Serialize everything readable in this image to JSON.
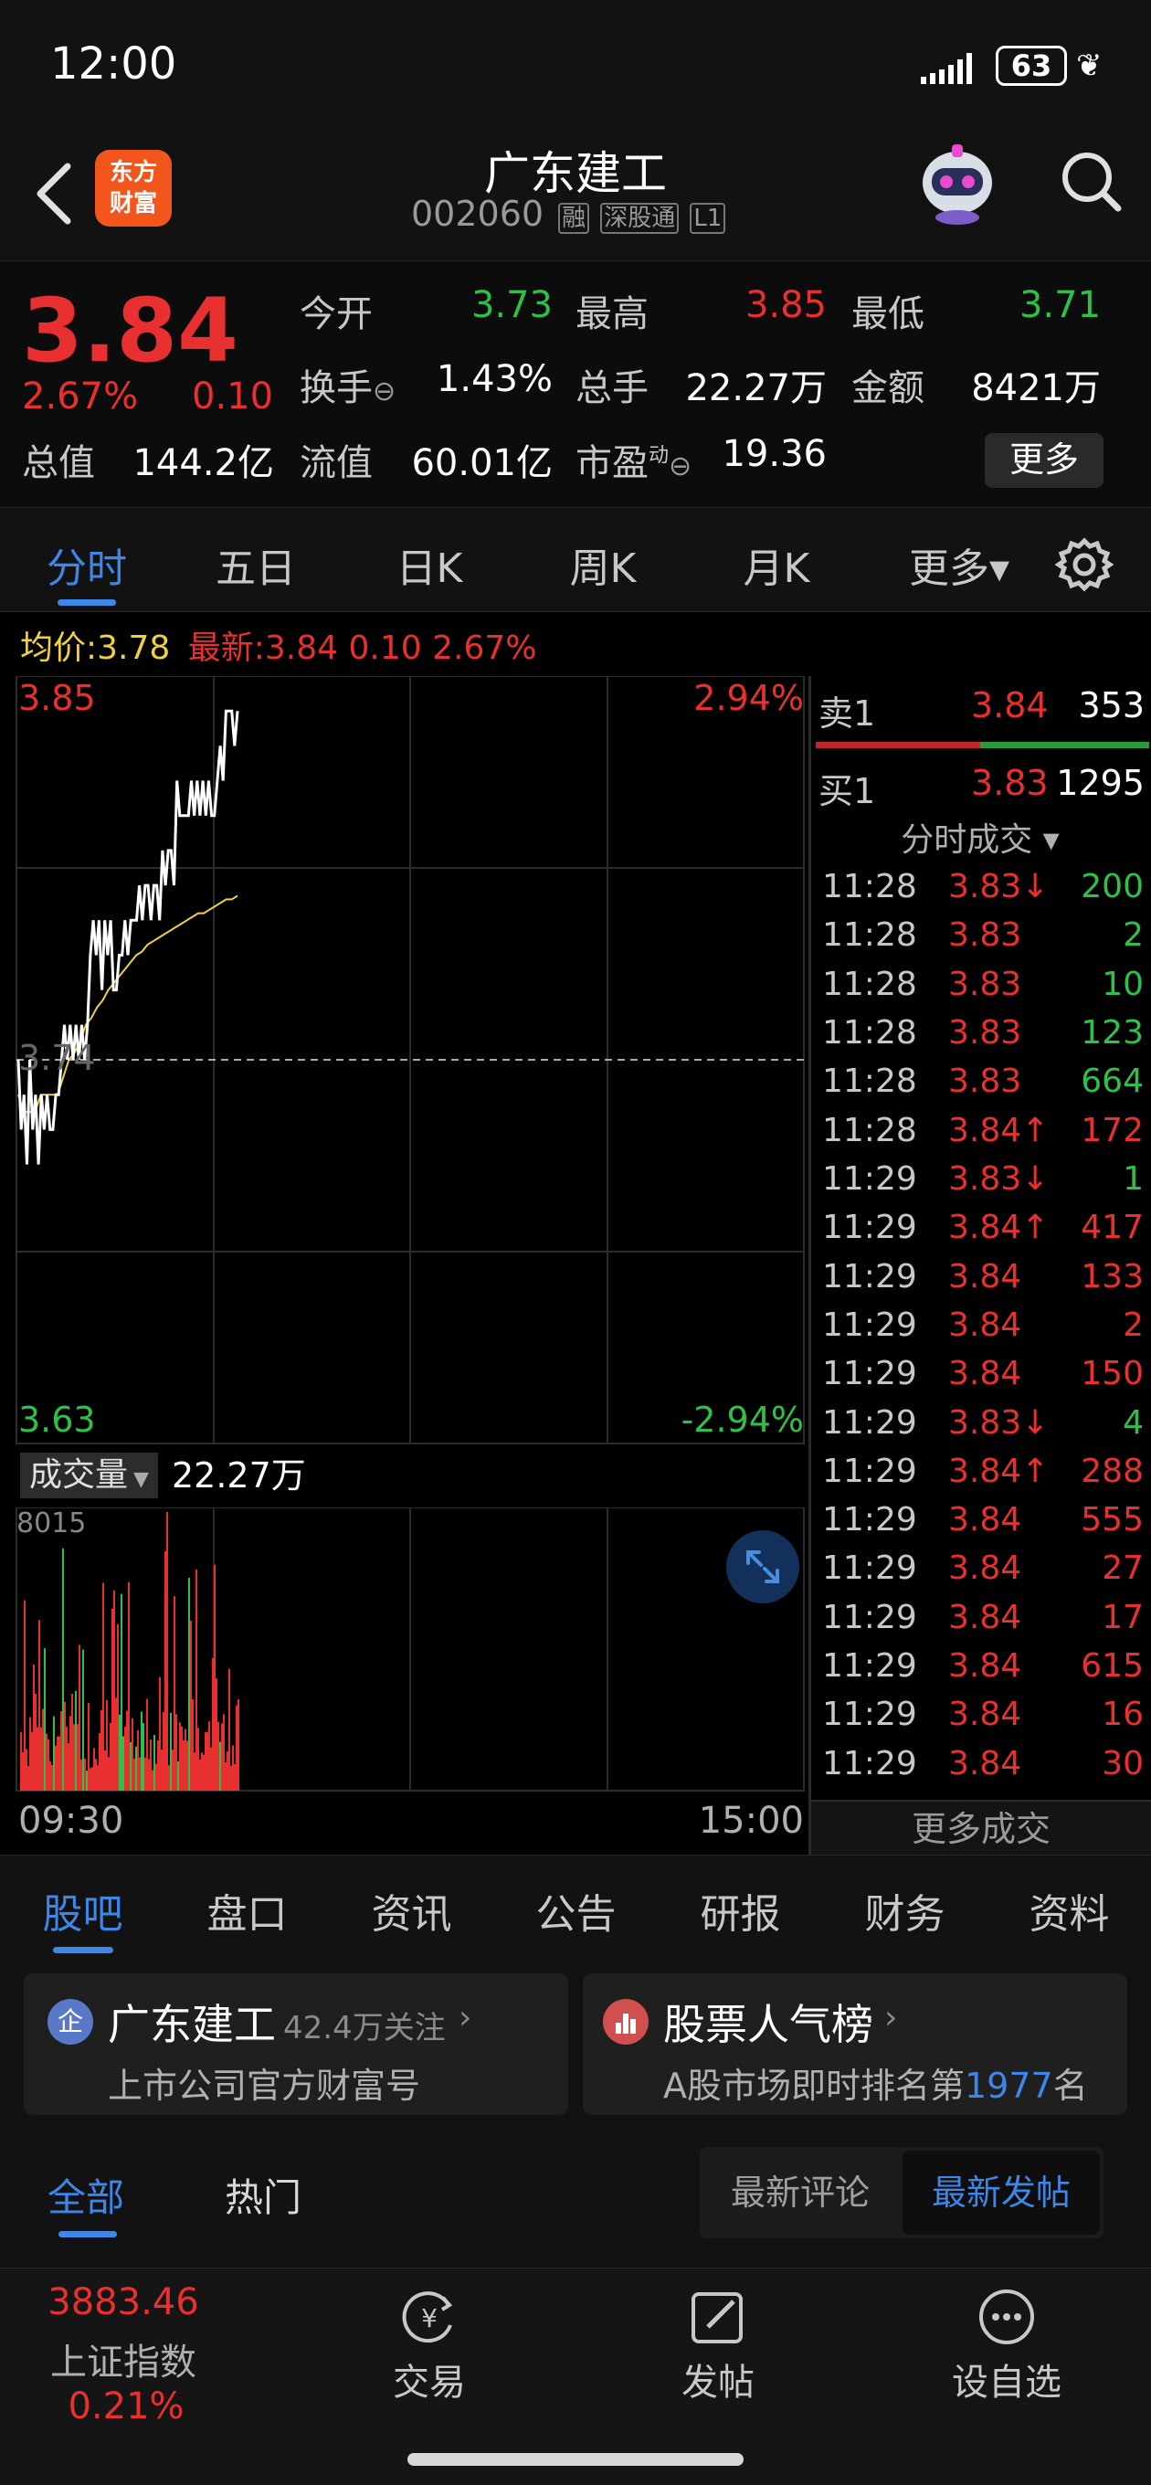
{
  "status": {
    "time": "12:00",
    "battery": "63"
  },
  "header": {
    "name": "广东建工",
    "code": "002060",
    "tags": [
      "融",
      "深股通",
      "L1"
    ],
    "logo": "东方\n财富"
  },
  "quote": {
    "price": "3.84",
    "pct": "2.67%",
    "chg": "0.10",
    "labels": {
      "open": "今开",
      "high": "最高",
      "low": "最低",
      "turnover": "换手",
      "vol": "总手",
      "amount": "金额",
      "mcap": "总值",
      "fcap": "流值",
      "pe": "市盈",
      "pe_sup": "动"
    },
    "open": "3.73",
    "high": "3.85",
    "low": "3.71",
    "turnover": "1.43%",
    "vol": "22.27万",
    "amount": "8421万",
    "mcap": "144.2亿",
    "fcap": "60.01亿",
    "pe": "19.36",
    "more": "更多"
  },
  "tabs": [
    "分时",
    "五日",
    "日K",
    "周K",
    "月K",
    "更多▾"
  ],
  "avg_line": {
    "avg_label": "均价:",
    "avg": "3.78",
    "latest_label": "最新:",
    "latest": "3.84 0.10 2.67%"
  },
  "chart_labels": {
    "ymax": "3.85",
    "ymid": "3.74",
    "ymin": "3.63",
    "pmax": "2.94%",
    "pmin": "-2.94%",
    "vol_dropdown": "成交量",
    "vol_total": "22.27万",
    "vol_max": "8015",
    "t_start": "09:30",
    "t_end": "15:00"
  },
  "chart_data": {
    "type": "line",
    "title": "",
    "ylim": [
      3.63,
      3.85
    ],
    "reference": 3.74,
    "series": [
      {
        "name": "最新",
        "values": [
          3.74,
          3.72,
          3.73,
          3.71,
          3.74,
          3.72,
          3.73,
          3.71,
          3.73,
          3.72,
          3.73,
          3.72,
          3.72,
          3.73,
          3.73,
          3.74,
          3.75,
          3.74,
          3.75,
          3.74,
          3.75,
          3.74,
          3.75,
          3.74,
          3.75,
          3.77,
          3.78,
          3.77,
          3.78,
          3.76,
          3.78,
          3.77,
          3.78,
          3.76,
          3.76,
          3.77,
          3.77,
          3.78,
          3.77,
          3.78,
          3.78,
          3.78,
          3.79,
          3.78,
          3.79,
          3.79,
          3.78,
          3.79,
          3.79,
          3.78,
          3.8,
          3.79,
          3.8,
          3.8,
          3.79,
          3.82,
          3.81,
          3.81,
          3.81,
          3.81,
          3.82,
          3.81,
          3.82,
          3.81,
          3.82,
          3.81,
          3.82,
          3.81,
          3.81,
          3.82,
          3.83,
          3.82,
          3.84,
          3.84,
          3.84,
          3.83,
          3.84
        ]
      },
      {
        "name": "均价",
        "values": [
          3.73,
          3.725,
          3.725,
          3.725,
          3.73,
          3.73,
          3.73,
          3.73,
          3.735,
          3.74,
          3.742,
          3.745,
          3.75,
          3.752,
          3.755,
          3.757,
          3.76,
          3.762,
          3.764,
          3.766,
          3.768,
          3.77,
          3.771,
          3.773,
          3.774,
          3.775,
          3.776,
          3.777,
          3.778,
          3.779,
          3.78,
          3.781,
          3.782,
          3.782,
          3.783,
          3.784,
          3.785,
          3.786,
          3.786,
          3.787
        ]
      }
    ],
    "volume": {
      "ymax": 8015
    }
  },
  "orderbook": {
    "sell1": {
      "label": "卖1",
      "price": "3.84",
      "vol": "353"
    },
    "buy1": {
      "label": "买1",
      "price": "3.83",
      "vol": "1295"
    }
  },
  "trades_title": "分时成交 ▾",
  "trades": [
    {
      "time": "11:28",
      "price": "3.83↓",
      "vol": "200",
      "pc": "red",
      "vc": "green"
    },
    {
      "time": "11:28",
      "price": "3.83",
      "vol": "2",
      "pc": "red",
      "vc": "green"
    },
    {
      "time": "11:28",
      "price": "3.83",
      "vol": "10",
      "pc": "red",
      "vc": "green"
    },
    {
      "time": "11:28",
      "price": "3.83",
      "vol": "123",
      "pc": "red",
      "vc": "green"
    },
    {
      "time": "11:28",
      "price": "3.83",
      "vol": "664",
      "pc": "red",
      "vc": "green"
    },
    {
      "time": "11:28",
      "price": "3.84↑",
      "vol": "172",
      "pc": "red",
      "vc": "red"
    },
    {
      "time": "11:29",
      "price": "3.83↓",
      "vol": "1",
      "pc": "red",
      "vc": "green"
    },
    {
      "time": "11:29",
      "price": "3.84↑",
      "vol": "417",
      "pc": "red",
      "vc": "red"
    },
    {
      "time": "11:29",
      "price": "3.84",
      "vol": "133",
      "pc": "red",
      "vc": "red"
    },
    {
      "time": "11:29",
      "price": "3.84",
      "vol": "2",
      "pc": "red",
      "vc": "red"
    },
    {
      "time": "11:29",
      "price": "3.84",
      "vol": "150",
      "pc": "red",
      "vc": "red"
    },
    {
      "time": "11:29",
      "price": "3.83↓",
      "vol": "4",
      "pc": "red",
      "vc": "green"
    },
    {
      "time": "11:29",
      "price": "3.84↑",
      "vol": "288",
      "pc": "red",
      "vc": "red"
    },
    {
      "time": "11:29",
      "price": "3.84",
      "vol": "555",
      "pc": "red",
      "vc": "red"
    },
    {
      "time": "11:29",
      "price": "3.84",
      "vol": "27",
      "pc": "red",
      "vc": "red"
    },
    {
      "time": "11:29",
      "price": "3.84",
      "vol": "17",
      "pc": "red",
      "vc": "red"
    },
    {
      "time": "11:29",
      "price": "3.84",
      "vol": "615",
      "pc": "red",
      "vc": "red"
    },
    {
      "time": "11:29",
      "price": "3.84",
      "vol": "16",
      "pc": "red",
      "vc": "red"
    },
    {
      "time": "11:29",
      "price": "3.84",
      "vol": "30",
      "pc": "red",
      "vc": "red"
    }
  ],
  "more_trades": "更多成交",
  "subtabs": [
    "股吧",
    "盘口",
    "资讯",
    "公告",
    "研报",
    "财务",
    "资料"
  ],
  "card1": {
    "badge": "企",
    "title": "广东建工",
    "followers": "42.4万关注",
    "sub": "上市公司官方财富号"
  },
  "card2": {
    "title": "股票人气榜",
    "sub_prefix": "A股市场即时排名第",
    "rank": "1977",
    "sub_suffix": "名"
  },
  "filter": {
    "all": "全部",
    "hot": "热门",
    "sort1": "最新评论",
    "sort2": "最新发帖"
  },
  "bottom": {
    "index_value": "3883.46",
    "index_name": "上证指数",
    "index_pct": "0.21%",
    "nav": [
      "交易",
      "发帖",
      "设自选"
    ]
  },
  "colors": {
    "up": "#e83030",
    "down": "#2fc04a",
    "accent": "#3e86e8",
    "avg_line": "#f0d23c"
  }
}
